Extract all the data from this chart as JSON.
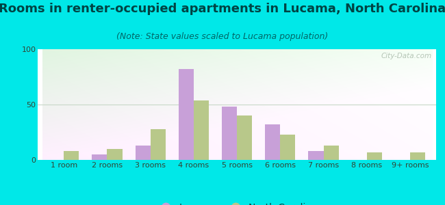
{
  "title": "Rooms in renter-occupied apartments in Lucama, North Carolina",
  "subtitle": "(Note: State values scaled to Lucama population)",
  "categories": [
    "1 room",
    "2 rooms",
    "3 rooms",
    "4 rooms",
    "5 rooms",
    "6 rooms",
    "7 rooms",
    "8 rooms",
    "9+ rooms"
  ],
  "lucama": [
    0,
    5,
    13,
    82,
    48,
    32,
    8,
    0,
    0
  ],
  "nc": [
    8,
    10,
    28,
    54,
    40,
    23,
    13,
    7,
    7
  ],
  "lucama_color": "#c8a0d8",
  "nc_color": "#b8c88a",
  "background_color": "#00e8e8",
  "ylim": [
    0,
    100
  ],
  "yticks": [
    0,
    50,
    100
  ],
  "bar_width": 0.35,
  "title_fontsize": 13,
  "subtitle_fontsize": 9,
  "axis_fontsize": 8,
  "legend_fontsize": 10,
  "title_color": "#004444",
  "subtitle_color": "#006666",
  "tick_color": "#334433",
  "watermark_text": "Ⓣ City-Data.com"
}
